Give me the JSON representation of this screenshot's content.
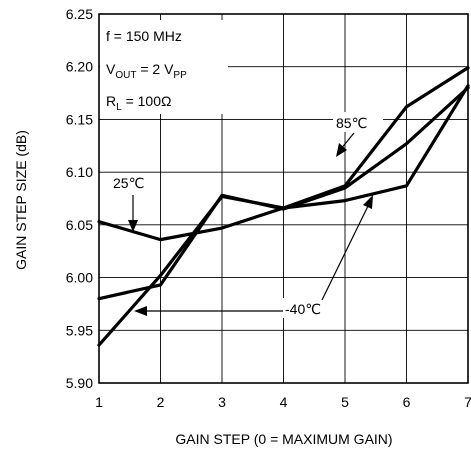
{
  "chart_data": {
    "type": "line",
    "title": "",
    "xlabel": "GAIN STEP (0 = MAXIMUM GAIN)",
    "ylabel": "GAIN STEP SIZE (dB)",
    "xlim": [
      1,
      7
    ],
    "ylim": [
      5.9,
      6.25
    ],
    "x_ticks": [
      "1",
      "2",
      "3",
      "4",
      "5",
      "6",
      "7"
    ],
    "y_ticks": [
      "5.90",
      "5.95",
      "6.00",
      "6.05",
      "6.10",
      "6.15",
      "6.20",
      "6.25"
    ],
    "grid": true,
    "series": [
      {
        "name": "25℃",
        "x": [
          1,
          2,
          3,
          4,
          5,
          6,
          7
        ],
        "y": [
          6.053,
          6.036,
          6.047,
          6.066,
          6.073,
          6.087,
          6.182
        ],
        "color": "#000000"
      },
      {
        "name": "85℃",
        "x": [
          1,
          2,
          3,
          4,
          5,
          6,
          7
        ],
        "y": [
          5.936,
          6.002,
          6.077,
          6.066,
          6.087,
          6.162,
          6.199
        ],
        "color": "#000000"
      },
      {
        "name": "-40℃",
        "x": [
          1,
          2,
          3,
          4,
          5,
          6,
          7
        ],
        "y": [
          5.98,
          5.993,
          6.078,
          6.065,
          6.085,
          6.127,
          6.18
        ],
        "color": "#000000"
      }
    ],
    "conditions": {
      "freq": "f = 150 MHz",
      "vout_pre": "V",
      "vout_sub": "OUT",
      "vout_mid": " = 2 V",
      "vout_sub2": "PP",
      "rl_pre": "R",
      "rl_sub": "L",
      "rl_post": " = 100Ω"
    }
  }
}
